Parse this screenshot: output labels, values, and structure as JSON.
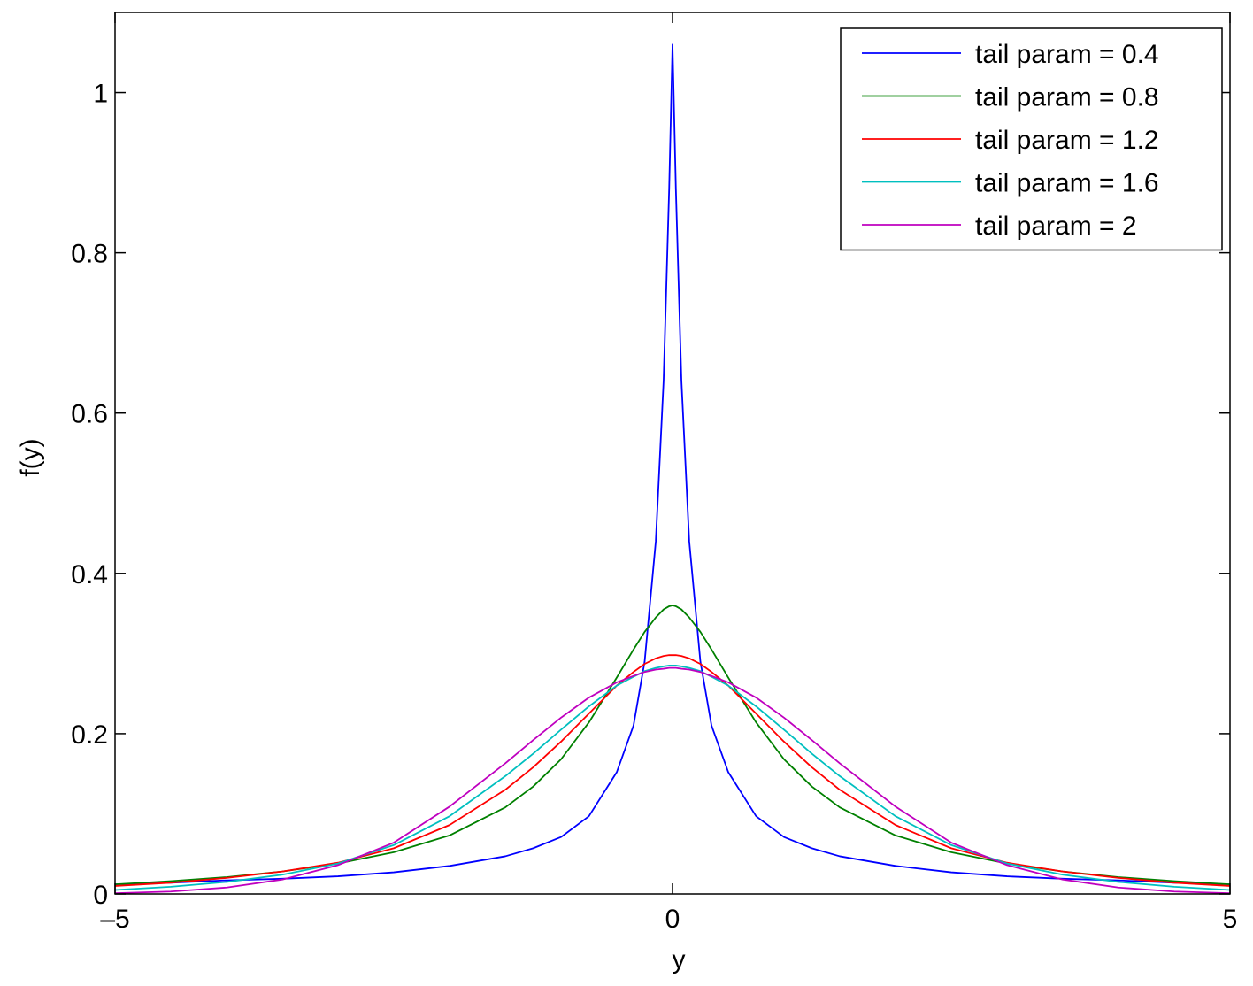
{
  "chart_data": {
    "type": "line",
    "title": "",
    "xlabel": "y",
    "ylabel": "f(y)",
    "xlim": [
      -5,
      5
    ],
    "ylim": [
      0,
      1.1
    ],
    "xticks": [
      -5,
      0,
      5
    ],
    "xtick_labels": [
      "–5",
      "0",
      "5"
    ],
    "yticks": [
      0,
      0.2,
      0.4,
      0.6,
      0.8,
      1
    ],
    "ytick_labels": [
      "0",
      "0.2",
      "0.4",
      "0.6",
      "0.8",
      "1"
    ],
    "grid": false,
    "legend_position": "top-right",
    "x": [
      -5,
      -4.5,
      -4,
      -3.5,
      -3,
      -2.5,
      -2,
      -1.5,
      -1.25,
      -1,
      -0.75,
      -0.5,
      -0.35,
      -0.25,
      -0.15,
      -0.08,
      -0.03,
      0,
      0.03,
      0.08,
      0.15,
      0.25,
      0.35,
      0.5,
      0.75,
      1,
      1.25,
      1.5,
      2,
      2.5,
      3,
      3.5,
      4,
      4.5,
      5
    ],
    "series": [
      {
        "name": "tail param = 0.4",
        "color": "#0000ff",
        "values": [
          0.012,
          0.014,
          0.017,
          0.019,
          0.022,
          0.027,
          0.035,
          0.047,
          0.057,
          0.071,
          0.097,
          0.152,
          0.21,
          0.29,
          0.44,
          0.64,
          0.88,
          1.06,
          0.88,
          0.64,
          0.44,
          0.29,
          0.21,
          0.152,
          0.097,
          0.071,
          0.057,
          0.047,
          0.035,
          0.027,
          0.022,
          0.019,
          0.017,
          0.014,
          0.012
        ]
      },
      {
        "name": "tail param = 0.8",
        "color": "#008000",
        "values": [
          0.012,
          0.016,
          0.021,
          0.028,
          0.038,
          0.052,
          0.073,
          0.108,
          0.134,
          0.168,
          0.214,
          0.27,
          0.305,
          0.327,
          0.345,
          0.355,
          0.359,
          0.36,
          0.359,
          0.355,
          0.345,
          0.327,
          0.305,
          0.27,
          0.214,
          0.168,
          0.134,
          0.108,
          0.073,
          0.052,
          0.038,
          0.028,
          0.021,
          0.016,
          0.012
        ]
      },
      {
        "name": "tail param = 1.2",
        "color": "#ff0000",
        "values": [
          0.01,
          0.014,
          0.02,
          0.028,
          0.039,
          0.057,
          0.086,
          0.13,
          0.158,
          0.19,
          0.225,
          0.26,
          0.277,
          0.287,
          0.294,
          0.297,
          0.298,
          0.298,
          0.298,
          0.297,
          0.294,
          0.287,
          0.277,
          0.26,
          0.225,
          0.19,
          0.158,
          0.13,
          0.086,
          0.057,
          0.039,
          0.028,
          0.02,
          0.014,
          0.01
        ]
      },
      {
        "name": "tail param = 1.6",
        "color": "#00bfbf",
        "values": [
          0.005,
          0.009,
          0.015,
          0.024,
          0.038,
          0.061,
          0.097,
          0.147,
          0.175,
          0.205,
          0.234,
          0.26,
          0.271,
          0.278,
          0.282,
          0.284,
          0.285,
          0.285,
          0.285,
          0.284,
          0.282,
          0.278,
          0.271,
          0.26,
          0.234,
          0.205,
          0.175,
          0.147,
          0.097,
          0.061,
          0.038,
          0.024,
          0.015,
          0.009,
          0.005
        ]
      },
      {
        "name": "tail param = 2",
        "color": "#bf00bf",
        "values": [
          0.001,
          0.003,
          0.008,
          0.018,
          0.036,
          0.064,
          0.109,
          0.163,
          0.192,
          0.22,
          0.245,
          0.264,
          0.272,
          0.277,
          0.28,
          0.281,
          0.282,
          0.282,
          0.282,
          0.281,
          0.28,
          0.277,
          0.272,
          0.264,
          0.245,
          0.22,
          0.192,
          0.163,
          0.109,
          0.064,
          0.036,
          0.018,
          0.008,
          0.003,
          0.001
        ]
      }
    ]
  }
}
